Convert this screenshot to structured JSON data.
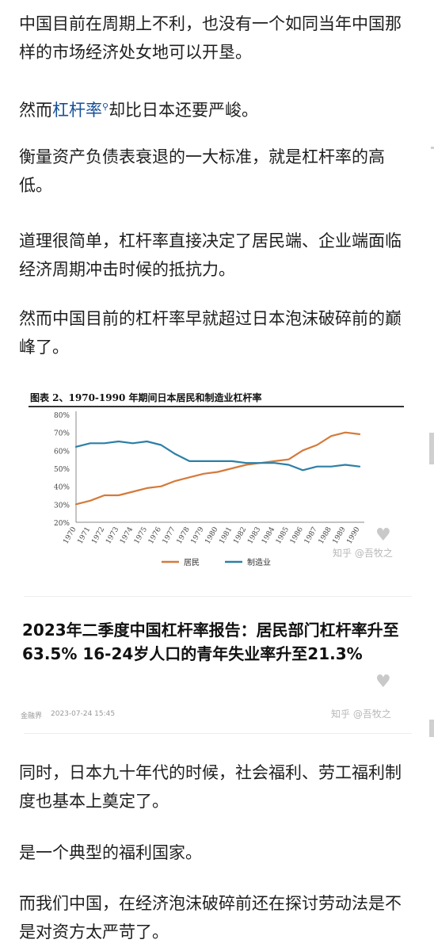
{
  "paragraphs": {
    "p1": "中国目前在周期上不利，也没有一个如同当年中国那样的市场经济处女地可以开垦。",
    "p2_before": "然而",
    "p2_link": "杠杆率",
    "p2_after": "却比日本还要严峻。",
    "p3": "衡量资产负债表衰退的一大标准，就是杠杆率的高低。",
    "p4": "道理很简单，杠杆率直接决定了居民端、企业端面临经济周期冲击时候的抵抗力。",
    "p5": "然而中国目前的杠杆率早就超过日本泡沫破碎前的巅峰了。",
    "p6": "同时，日本九十年代的时候，社会福利、劳工福利制度也基本上奠定了。",
    "p7": "是一个典型的福利国家。",
    "p8": "而我们中国，在经济泡沫破碎前还在探讨劳动法是不是对资方太严苛了。"
  },
  "figure": {
    "watermark": "知乎 @吾牧之"
  },
  "article_card": {
    "headline": "2023年二季度中国杠杆率报告：居民部门杠杆率升至63.5% 16-24岁人口的青年失业率升至21.3%",
    "source": "金融界",
    "date": "2023-07-24 15:45",
    "watermark": "知乎 @吾牧之"
  },
  "icons": {
    "search": "search-icon",
    "like": "heart-icon"
  },
  "chart_data": {
    "type": "line",
    "title": "图表 2、1970-1990 年期间日本居民和制造业杠杆率",
    "x": [
      1970,
      1971,
      1972,
      1973,
      1974,
      1975,
      1976,
      1977,
      1978,
      1979,
      1980,
      1981,
      1982,
      1983,
      1984,
      1985,
      1986,
      1987,
      1988,
      1989,
      1990
    ],
    "x_tick_labels": [
      "1970",
      "1971",
      "1972",
      "1973",
      "1974",
      "1975",
      "1976",
      "1977",
      "1978",
      "1979",
      "1980",
      "1981",
      "1982",
      "1983",
      "1984",
      "1985",
      "1986",
      "1987",
      "1988",
      "1989",
      "1990"
    ],
    "y_tick_labels": [
      "20%",
      "30%",
      "40%",
      "50%",
      "60%",
      "70%",
      "80%"
    ],
    "ylim": [
      20,
      80
    ],
    "series": [
      {
        "name": "居民",
        "color": "#d47a3a",
        "values": [
          30,
          32,
          35,
          35,
          37,
          39,
          40,
          43,
          45,
          47,
          48,
          50,
          52,
          53,
          54,
          55,
          60,
          63,
          68,
          70,
          69
        ]
      },
      {
        "name": "制造业",
        "color": "#2d7fa6",
        "values": [
          62,
          64,
          64,
          65,
          64,
          65,
          63,
          58,
          54,
          54,
          54,
          54,
          53,
          53,
          53,
          52,
          49,
          51,
          51,
          52,
          51
        ]
      }
    ],
    "legend_placement": "bottom-center",
    "grid": false
  }
}
